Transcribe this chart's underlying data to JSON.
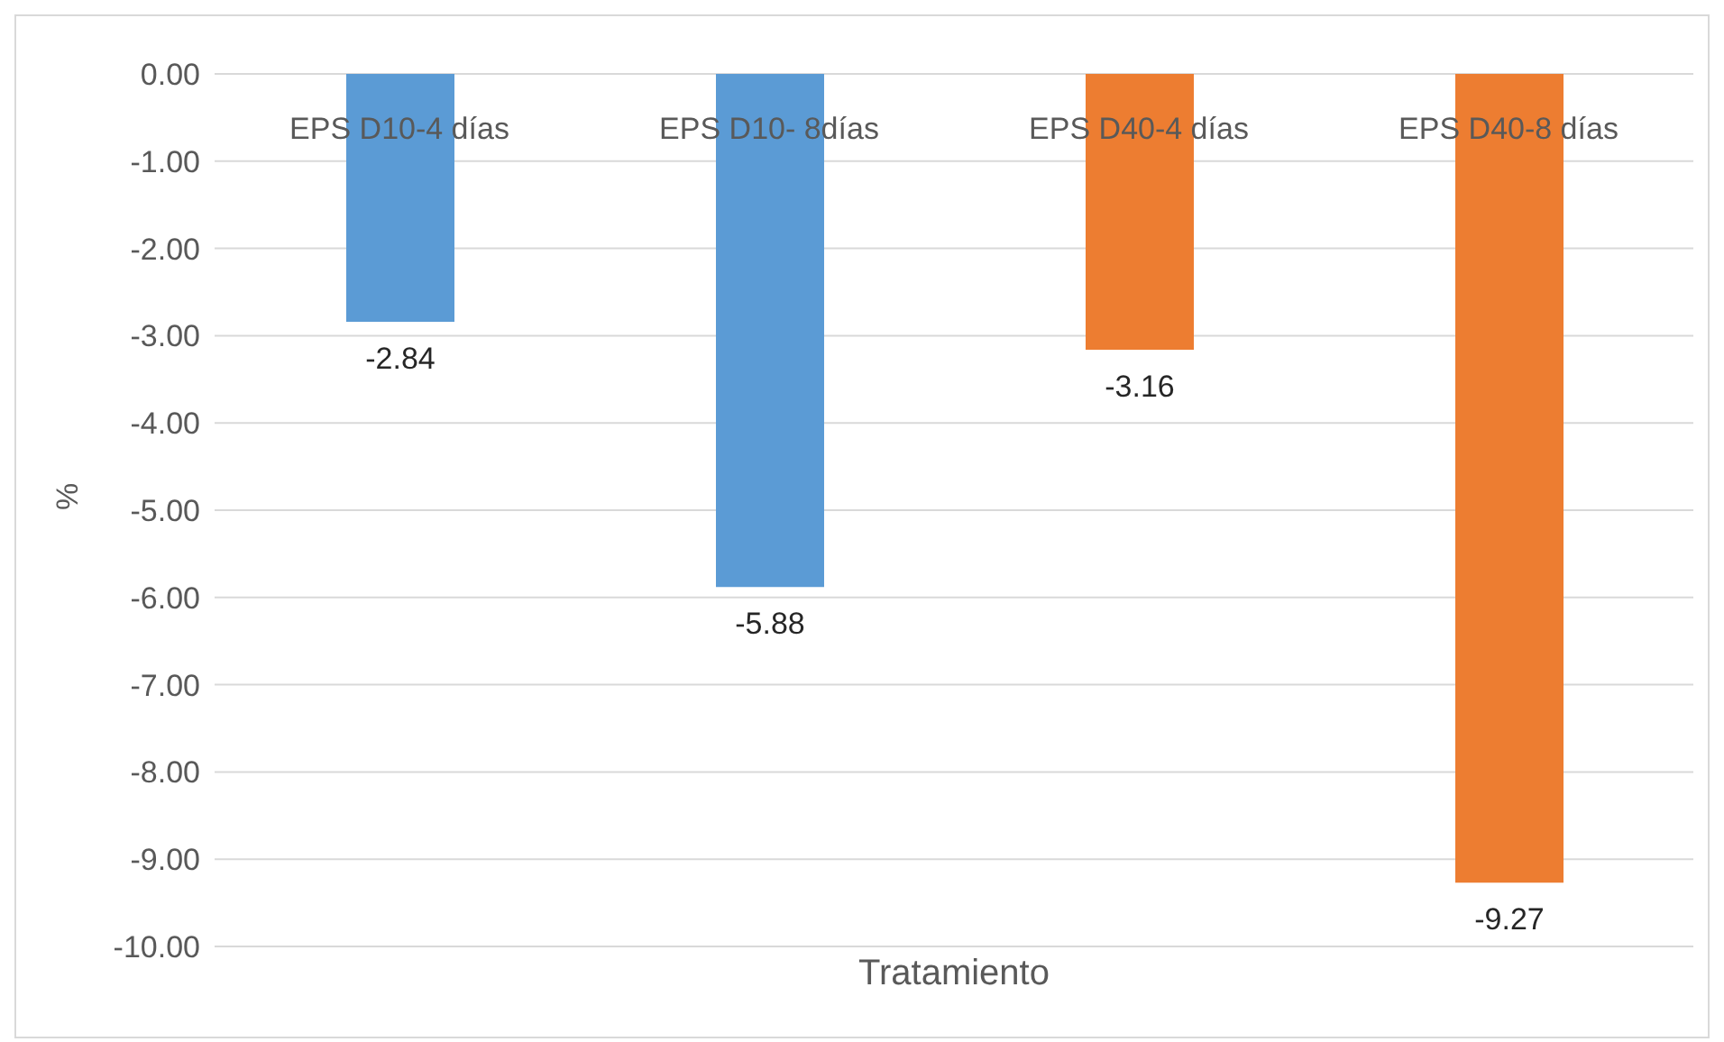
{
  "chart_data": {
    "type": "bar",
    "xlabel": "Tratamiento",
    "ylabel": "%",
    "categories": [
      "EPS D10-4 días",
      "EPS D10- 8días",
      "EPS D40-4 días",
      "EPS D40-8 días"
    ],
    "values": [
      -2.84,
      -5.88,
      -3.16,
      -9.27
    ],
    "colors": [
      "#5b9bd5",
      "#5b9bd5",
      "#ed7d31",
      "#ed7d31"
    ],
    "ylim": [
      -10,
      0
    ],
    "yticks": [
      {
        "value": 0,
        "label": "0.00"
      },
      {
        "value": -1,
        "label": "-1.00"
      },
      {
        "value": -2,
        "label": "-2.00"
      },
      {
        "value": -3,
        "label": "-3.00"
      },
      {
        "value": -4,
        "label": "-4.00"
      },
      {
        "value": -5,
        "label": "-5.00"
      },
      {
        "value": -6,
        "label": "-6.00"
      },
      {
        "value": -7,
        "label": "-7.00"
      },
      {
        "value": -8,
        "label": "-8.00"
      },
      {
        "value": -9,
        "label": "-9.00"
      },
      {
        "value": -10,
        "label": "-10.00"
      }
    ],
    "grid": "y",
    "data_labels": true
  }
}
